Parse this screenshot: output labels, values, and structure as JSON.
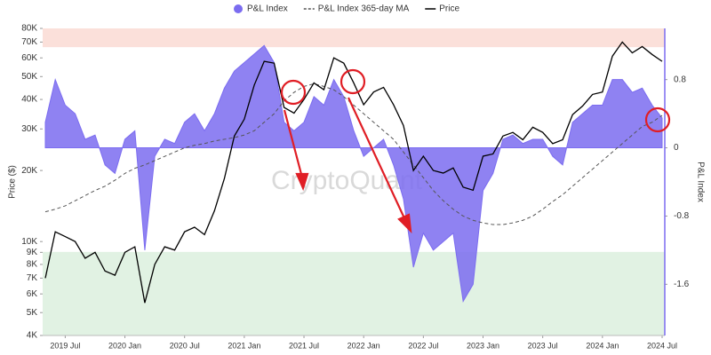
{
  "chart_data": {
    "type": "line",
    "watermark": "CryptoQuant",
    "y_label": "Price ($)",
    "y2_label": "P&L Index",
    "x": [
      "2019 May",
      "2019 Jun",
      "2019 Jul",
      "2019 Aug",
      "2019 Sep",
      "2019 Oct",
      "2019 Nov",
      "2019 Dec",
      "2020 Jan",
      "2020 Feb",
      "2020 Mar",
      "2020 Apr",
      "2020 May",
      "2020 Jun",
      "2020 Jul",
      "2020 Aug",
      "2020 Sep",
      "2020 Oct",
      "2020 Nov",
      "2020 Dec",
      "2021 Jan",
      "2021 Feb",
      "2021 Mar",
      "2021 Apr",
      "2021 May",
      "2021 Jun",
      "2021 Jul",
      "2021 Aug",
      "2021 Sep",
      "2021 Oct",
      "2021 Nov",
      "2021 Dec",
      "2022 Jan",
      "2022 Feb",
      "2022 Mar",
      "2022 Apr",
      "2022 May",
      "2022 Jun",
      "2022 Jul",
      "2022 Aug",
      "2022 Sep",
      "2022 Oct",
      "2022 Nov",
      "2022 Dec",
      "2023 Jan",
      "2023 Feb",
      "2023 Mar",
      "2023 Apr",
      "2023 May",
      "2023 Jun",
      "2023 Jul",
      "2023 Aug",
      "2023 Sep",
      "2023 Oct",
      "2023 Nov",
      "2023 Dec",
      "2024 Jan",
      "2024 Feb",
      "2024 Mar",
      "2024 Apr",
      "2024 May",
      "2024 Jun",
      "2024 Jul"
    ],
    "xticks": [
      "2019 Jul",
      "2020 Jan",
      "2020 Jul",
      "2021 Jan",
      "2021 Jul",
      "2022 Jan",
      "2022 Jul",
      "2023 Jan",
      "2023 Jul",
      "2024 Jan",
      "2024 Jul"
    ],
    "series": [
      {
        "name": "P&L Index",
        "color": "#7b6cf0",
        "render": "area",
        "axis": "y2",
        "values": [
          0.3,
          0.8,
          0.5,
          0.4,
          0.1,
          0.15,
          -0.2,
          -0.3,
          0.1,
          0.2,
          -1.2,
          -0.1,
          0.1,
          0.05,
          0.3,
          0.4,
          0.2,
          0.4,
          0.7,
          0.9,
          1.0,
          1.1,
          1.2,
          1.0,
          0.3,
          0.2,
          0.3,
          0.6,
          0.5,
          0.8,
          0.6,
          0.2,
          -0.1,
          0.0,
          0.1,
          -0.2,
          -0.6,
          -1.4,
          -1.0,
          -1.2,
          -1.1,
          -1.0,
          -1.8,
          -1.6,
          -0.5,
          -0.3,
          0.1,
          0.15,
          0.05,
          0.1,
          0.1,
          -0.1,
          -0.2,
          0.3,
          0.4,
          0.5,
          0.5,
          0.8,
          0.8,
          0.65,
          0.7,
          0.5,
          0.35
        ]
      },
      {
        "name": "P&L Index 365-day MA",
        "color": "#555555",
        "render": "dashed",
        "axis": "y2",
        "values": [
          -0.75,
          -0.72,
          -0.68,
          -0.62,
          -0.56,
          -0.5,
          -0.45,
          -0.38,
          -0.3,
          -0.24,
          -0.2,
          -0.15,
          -0.1,
          -0.05,
          0.0,
          0.03,
          0.05,
          0.08,
          0.1,
          0.12,
          0.15,
          0.2,
          0.3,
          0.4,
          0.55,
          0.65,
          0.72,
          0.75,
          0.72,
          0.68,
          0.6,
          0.5,
          0.4,
          0.3,
          0.2,
          0.1,
          -0.05,
          -0.2,
          -0.35,
          -0.5,
          -0.62,
          -0.72,
          -0.8,
          -0.85,
          -0.88,
          -0.9,
          -0.9,
          -0.88,
          -0.85,
          -0.8,
          -0.72,
          -0.63,
          -0.55,
          -0.45,
          -0.35,
          -0.25,
          -0.15,
          -0.05,
          0.05,
          0.15,
          0.25,
          0.3,
          0.38
        ]
      },
      {
        "name": "Price",
        "color": "#000000",
        "render": "line",
        "axis": "y",
        "values": [
          7000,
          11000,
          10500,
          10000,
          8500,
          9000,
          7500,
          7200,
          9000,
          9500,
          5500,
          8000,
          9500,
          9200,
          11000,
          11500,
          10700,
          13500,
          18500,
          28000,
          33000,
          46000,
          58000,
          57000,
          37000,
          35000,
          40000,
          47000,
          44000,
          60000,
          57000,
          47000,
          38000,
          43000,
          45000,
          38000,
          31000,
          20000,
          23000,
          20000,
          19500,
          20500,
          17000,
          16500,
          23000,
          23500,
          28000,
          29000,
          27000,
          30500,
          29000,
          26000,
          27000,
          34500,
          37500,
          42000,
          43000,
          61000,
          70000,
          63000,
          67000,
          62000,
          58000
        ]
      }
    ],
    "ylog": true,
    "ylim": [
      4000,
      80000
    ],
    "yticks": [
      {
        "value": 4000,
        "label": "4K"
      },
      {
        "value": 5000,
        "label": "5K"
      },
      {
        "value": 6000,
        "label": "6K"
      },
      {
        "value": 7000,
        "label": "7K"
      },
      {
        "value": 8000,
        "label": "8K"
      },
      {
        "value": 9000,
        "label": "9K"
      },
      {
        "value": 10000,
        "label": "10K"
      },
      {
        "value": 20000,
        "label": "20K"
      },
      {
        "value": 30000,
        "label": "30K"
      },
      {
        "value": 40000,
        "label": "40K"
      },
      {
        "value": 50000,
        "label": "50K"
      },
      {
        "value": 60000,
        "label": "60K"
      },
      {
        "value": 70000,
        "label": "70K"
      },
      {
        "value": 80000,
        "label": "80K"
      }
    ],
    "y2lim": [
      -2.2,
      1.4
    ],
    "y2ticks": [
      0.8,
      0,
      -0.8,
      -1.6
    ],
    "bands": [
      {
        "from": 1.18,
        "to": 1.4,
        "color": "#fbe0da"
      },
      {
        "from": -2.2,
        "to": -1.22,
        "color": "#e1f2e3"
      }
    ]
  }
}
